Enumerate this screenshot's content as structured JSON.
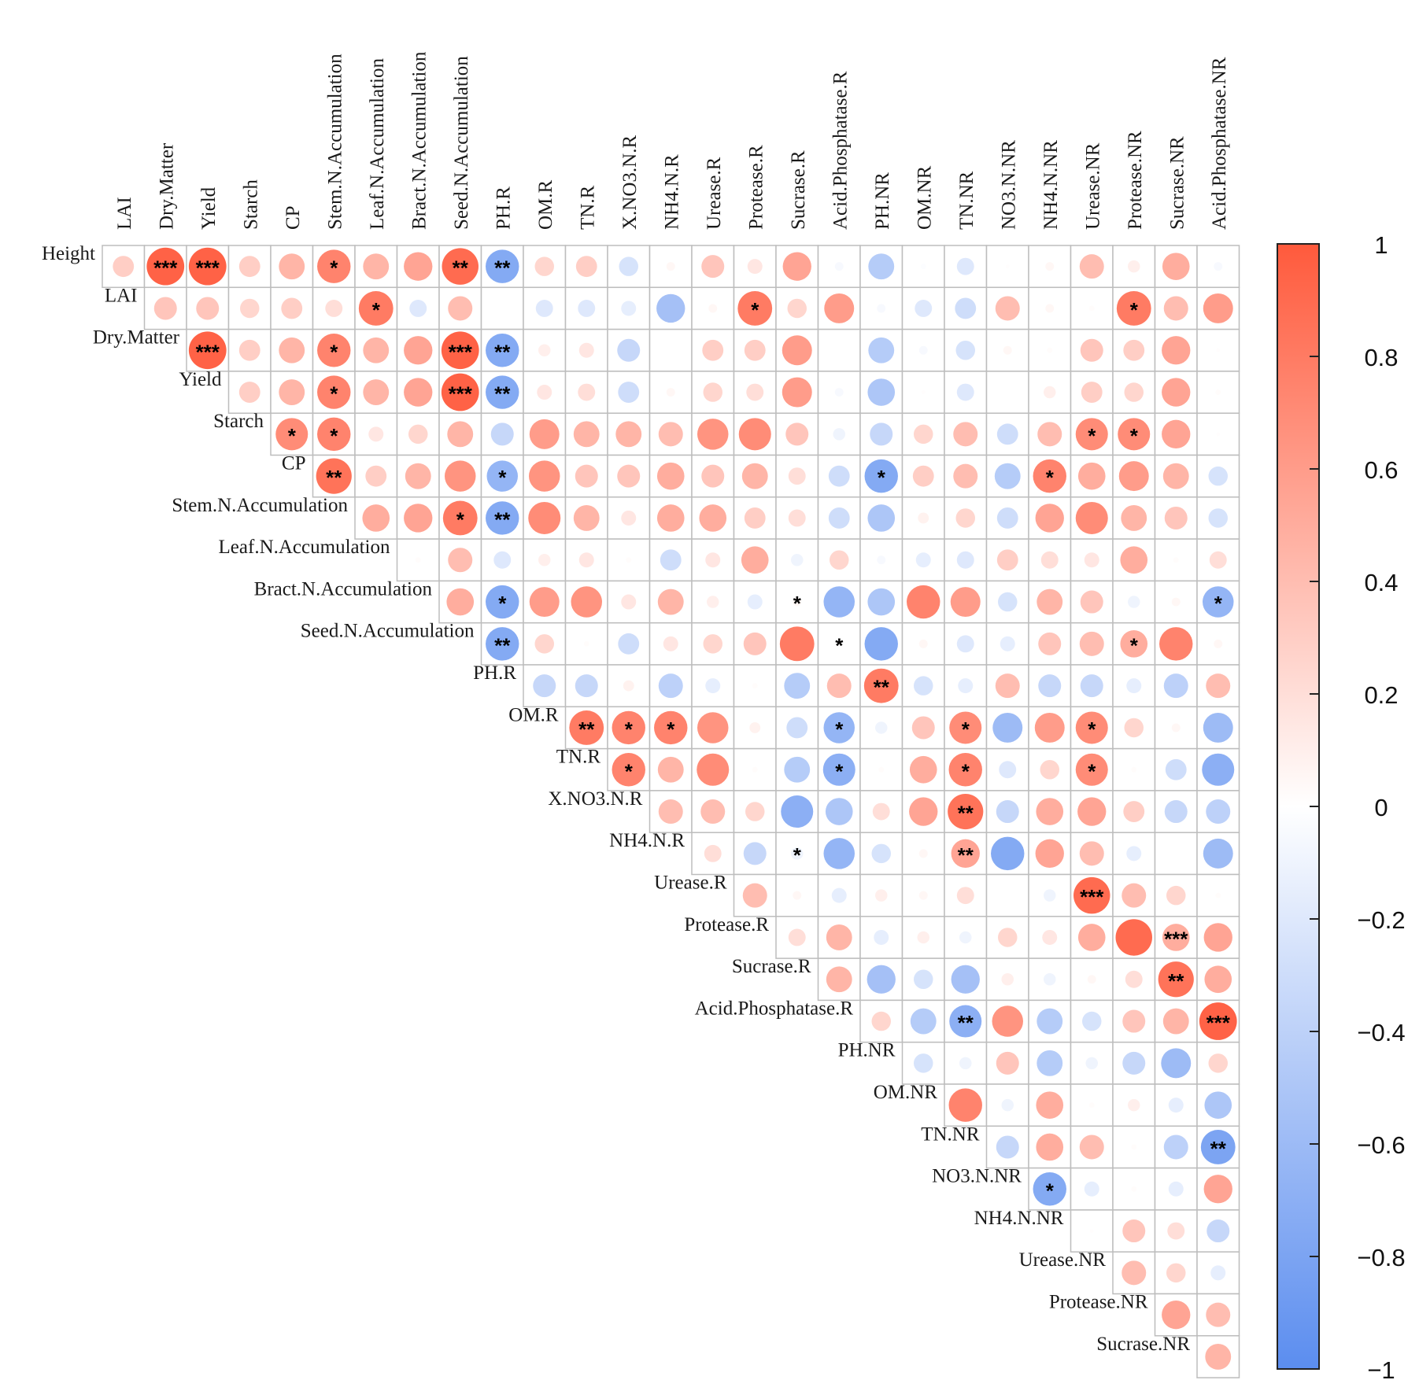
{
  "chart_data": {
    "type": "heatmap",
    "subtype": "upper-triangular correlation matrix (circle markers)",
    "variables": [
      "Height",
      "LAI",
      "Dry.Matter",
      "Yield",
      "Starch",
      "CP",
      "Stem.N.Accumulation",
      "Leaf.N.Accumulation",
      "Bract.N.Accumulation",
      "Seed.N.Accumulation",
      "PH.R",
      "OM.R",
      "TN.R",
      "X.NO3.N.R",
      "NH4.N.R",
      "Urease.R",
      "Protease.R",
      "Sucrase.R",
      "Acid.Phosphatase.R",
      "PH.NR",
      "OM.NR",
      "TN.NR",
      "NO3.N.NR",
      "NH4.N.NR",
      "Urease.NR",
      "Protease.NR",
      "Sucrase.NR",
      "Acid.Phosphatase.NR"
    ],
    "row_labels": [
      "Height",
      "LAI",
      "Dry.Matter",
      "Yield",
      "Starch",
      "CP",
      "Stem.N.Accumulation",
      "Leaf.N.Accumulation",
      "Bract.N.Accumulation",
      "Seed.N.Accumulation",
      "PH.R",
      "OM.R",
      "TN.R",
      "X.NO3.N.R",
      "NH4.N.R",
      "Urease.R",
      "Protease.R",
      "Sucrase.R",
      "Acid.Phosphatase.R",
      "PH.NR",
      "OM.NR",
      "TN.NR",
      "NO3.N.NR",
      "NH4.N.NR",
      "Urease.NR",
      "Protease.NR",
      "Sucrase.NR"
    ],
    "column_labels": [
      "LAI",
      "Dry.Matter",
      "Yield",
      "Starch",
      "CP",
      "Stem.N.Accumulation",
      "Leaf.N.Accumulation",
      "Bract.N.Accumulation",
      "Seed.N.Accumulation",
      "PH.R",
      "OM.R",
      "TN.R",
      "X.NO3.N.R",
      "NH4.N.R",
      "Urease.R",
      "Protease.R",
      "Sucrase.R",
      "Acid.Phosphatase.R",
      "PH.NR",
      "OM.NR",
      "TN.NR",
      "NO3.N.NR",
      "NH4.N.NR",
      "Urease.NR",
      "Protease.NR",
      "Sucrase.NR",
      "Acid.Phosphatase.NR"
    ],
    "color_scale": {
      "min": -1,
      "max": 1,
      "low_color": "#5b8def",
      "mid_color": "#ffffff",
      "high_color": "#ff5a3c"
    },
    "colorbar_ticks": [
      "1",
      "0.8",
      "0.6",
      "0.4",
      "0.2",
      "0",
      "−0.2",
      "−0.4",
      "−0.6",
      "−0.8",
      "−1"
    ],
    "colorbar_tick_values": [
      1,
      0.8,
      0.6,
      0.4,
      0.2,
      0,
      -0.2,
      -0.4,
      -0.6,
      -0.8,
      -1
    ],
    "correlations": [
      [
        0.3,
        0.95,
        0.95,
        0.3,
        0.45,
        0.75,
        0.45,
        0.55,
        0.9,
        -0.75,
        0.25,
        0.3,
        -0.25,
        0.05,
        0.35,
        0.15,
        0.55,
        -0.05,
        -0.45,
        -0.02,
        -0.2,
        0.01,
        0.05,
        0.4,
        0.1,
        0.5,
        -0.05
      ],
      [
        0.35,
        0.35,
        0.25,
        0.3,
        0.2,
        0.8,
        -0.2,
        0.4,
        null,
        -0.2,
        -0.2,
        -0.15,
        -0.55,
        0.05,
        0.8,
        0.25,
        0.6,
        -0.05,
        -0.2,
        -0.3,
        0.4,
        0.05,
        0.02,
        0.8,
        0.4,
        0.6
      ],
      [
        0.95,
        0.3,
        0.45,
        0.75,
        0.45,
        0.55,
        0.95,
        -0.75,
        0.1,
        0.15,
        -0.35,
        null,
        0.3,
        0.3,
        0.6,
        null,
        -0.45,
        -0.05,
        -0.25,
        0.05,
        0.02,
        0.35,
        0.3,
        0.55,
        0.01
      ],
      [
        0.3,
        0.45,
        0.75,
        0.45,
        0.55,
        0.95,
        -0.75,
        0.15,
        0.2,
        -0.3,
        0.05,
        0.25,
        0.2,
        0.6,
        -0.05,
        -0.5,
        0.01,
        -0.2,
        null,
        0.1,
        0.3,
        0.25,
        0.55,
        0.02
      ],
      [
        0.7,
        0.75,
        0.15,
        0.25,
        0.45,
        -0.35,
        0.6,
        0.45,
        0.45,
        0.4,
        0.65,
        0.7,
        0.35,
        -0.1,
        -0.35,
        0.25,
        0.4,
        -0.3,
        0.4,
        0.7,
        0.7,
        0.55,
        0.01
      ],
      [
        0.85,
        0.3,
        0.45,
        0.65,
        -0.65,
        0.65,
        0.35,
        0.35,
        0.5,
        0.35,
        0.45,
        0.2,
        -0.3,
        -0.75,
        0.3,
        0.4,
        -0.45,
        0.75,
        0.5,
        0.6,
        0.45,
        -0.25
      ],
      [
        0.5,
        0.55,
        0.8,
        -0.75,
        0.7,
        0.45,
        0.15,
        0.5,
        0.5,
        0.3,
        0.2,
        -0.3,
        -0.5,
        0.08,
        0.25,
        -0.3,
        0.55,
        0.7,
        0.45,
        0.35,
        -0.25
      ],
      [
        0.02,
        0.4,
        -0.2,
        0.1,
        0.15,
        0.02,
        -0.3,
        0.15,
        0.5,
        -0.1,
        0.25,
        -0.05,
        -0.15,
        -0.2,
        0.3,
        0.2,
        0.15,
        0.5,
        0.02,
        0.2
      ],
      [
        0.5,
        -0.75,
        0.6,
        0.65,
        0.15,
        0.45,
        0.1,
        -0.15,
        0.05,
        -0.65,
        -0.5,
        0.75,
        0.6,
        -0.25,
        0.45,
        0.35,
        -0.1,
        0.05,
        -0.65
      ],
      [
        -0.75,
        0.25,
        0.02,
        -0.3,
        0.15,
        0.25,
        0.35,
        0.8,
        0.02,
        -0.75,
        0.05,
        -0.2,
        -0.15,
        0.35,
        0.4,
        0.5,
        0.75,
        0.05
      ],
      [
        -0.35,
        -0.35,
        0.08,
        -0.4,
        -0.15,
        0.02,
        -0.45,
        0.4,
        0.8,
        -0.25,
        -0.15,
        0.4,
        -0.35,
        -0.35,
        -0.15,
        -0.4,
        0.4
      ],
      [
        0.8,
        0.75,
        0.75,
        0.65,
        0.08,
        -0.3,
        -0.65,
        -0.1,
        0.35,
        0.7,
        -0.6,
        0.6,
        0.7,
        0.25,
        0.05,
        -0.6
      ],
      [
        0.75,
        0.45,
        0.7,
        0.02,
        -0.45,
        -0.7,
        0.02,
        0.5,
        0.75,
        -0.2,
        0.25,
        0.7,
        0.02,
        -0.3,
        -0.7
      ],
      [
        0.4,
        0.4,
        0.25,
        -0.7,
        -0.5,
        0.2,
        0.55,
        0.85,
        -0.35,
        0.5,
        0.55,
        0.3,
        -0.35,
        -0.4
      ],
      [
        0.2,
        -0.35,
        -0.1,
        -0.65,
        -0.25,
        0.05,
        0.55,
        -0.75,
        0.55,
        0.4,
        -0.15,
        null,
        -0.6
      ],
      [
        0.4,
        0.05,
        -0.15,
        0.1,
        0.05,
        0.2,
        null,
        -0.1,
        0.9,
        0.4,
        0.25,
        0.02
      ],
      [
        0.2,
        0.45,
        -0.15,
        0.1,
        -0.1,
        0.25,
        0.15,
        0.5,
        0.9,
        0.5,
        0.55
      ],
      [
        0.45,
        -0.55,
        -0.25,
        -0.55,
        0.1,
        -0.1,
        0.05,
        0.2,
        0.85,
        0.5
      ],
      [
        0.25,
        -0.45,
        -0.7,
        0.65,
        -0.45,
        -0.25,
        0.35,
        0.45,
        0.95
      ],
      [
        -0.25,
        -0.1,
        0.35,
        -0.45,
        -0.1,
        -0.35,
        -0.6,
        0.25
      ],
      [
        0.75,
        -0.1,
        0.5,
        0.02,
        0.1,
        -0.15,
        -0.5
      ],
      [
        -0.35,
        0.5,
        0.4,
        0.02,
        -0.4,
        -0.8
      ],
      [
        -0.75,
        -0.15,
        0.02,
        -0.15,
        0.55
      ],
      [
        0.01,
        0.35,
        0.2,
        -0.35
      ],
      [
        0.4,
        0.25,
        -0.15
      ],
      [
        0.55,
        0.4
      ],
      [
        0.45
      ]
    ],
    "significance": [
      [
        "",
        "***",
        "***",
        "",
        "",
        "*",
        "",
        "",
        "**",
        "**",
        "",
        "",
        "",
        "",
        "",
        "",
        "",
        "",
        "",
        "",
        "",
        "",
        "",
        "",
        "",
        "",
        ""
      ],
      [
        "",
        "",
        "",
        "",
        "",
        "*",
        "",
        "",
        "",
        "",
        "",
        "",
        "",
        "",
        "*",
        "",
        "",
        "",
        "",
        "",
        "",
        "",
        "",
        "*",
        "",
        ""
      ],
      [
        "***",
        "",
        "",
        "*",
        "",
        "",
        "***",
        "**",
        "",
        "",
        "",
        "",
        "",
        "",
        "",
        "",
        "",
        "",
        "",
        "",
        "",
        "",
        "",
        "",
        ""
      ],
      [
        "",
        "",
        "*",
        "",
        "",
        "***",
        "**",
        "",
        "",
        "",
        "",
        "",
        "",
        "",
        "",
        "",
        "",
        "",
        "",
        "",
        "",
        "",
        "",
        ""
      ],
      [
        "*",
        "*",
        "",
        "",
        "",
        "",
        "",
        "",
        "",
        "",
        "",
        "",
        "",
        "",
        "",
        "",
        "",
        "",
        "",
        "*",
        "*",
        "",
        ""
      ],
      [
        "**",
        "",
        "",
        "",
        "*",
        "",
        "",
        "",
        "",
        "",
        "",
        "",
        "",
        "*",
        "",
        "",
        "",
        "*",
        "",
        "",
        ""
      ],
      [
        "",
        "",
        "*",
        "**",
        "",
        "",
        "",
        "",
        "",
        "",
        "",
        "",
        "",
        "",
        "",
        "",
        "",
        "",
        "",
        "",
        ""
      ],
      [
        "",
        "",
        "",
        "",
        "",
        "",
        "",
        "",
        "",
        "",
        "",
        "",
        "",
        "",
        "",
        "",
        "",
        "",
        "",
        ""
      ],
      [
        "",
        "*",
        "",
        "",
        "",
        "",
        "",
        "",
        "*",
        "",
        "",
        "",
        "",
        "",
        "",
        "",
        "",
        "",
        "*"
      ],
      [
        "**",
        "",
        "",
        "",
        "",
        "",
        "",
        "",
        "*",
        "",
        "",
        "",
        "",
        "",
        "",
        "*",
        ""
      ],
      [
        "",
        "",
        "",
        "",
        "",
        "",
        "",
        "",
        "**",
        "",
        "",
        "",
        "",
        "",
        "",
        "",
        ""
      ],
      [
        "**",
        "*",
        "*",
        "",
        "",
        "",
        "*",
        "",
        "",
        "*",
        "",
        "",
        "*",
        "",
        "",
        ""
      ],
      [
        "*",
        "",
        "",
        "",
        "",
        "*",
        "",
        "",
        "*",
        "",
        "",
        "*",
        "",
        "",
        ""
      ],
      [
        "",
        "",
        "",
        "",
        "",
        "",
        "",
        "**",
        "",
        "",
        "",
        "",
        "",
        ""
      ],
      [
        "",
        "",
        "*",
        "",
        "",
        "",
        "**",
        "",
        "",
        "",
        "",
        ""
      ],
      [
        "",
        "",
        "",
        "",
        "",
        "",
        "",
        "",
        "***",
        "",
        "",
        ""
      ],
      [
        "",
        "",
        "",
        "",
        "",
        "",
        "",
        "",
        "",
        "***",
        "",
        ""
      ],
      [
        "",
        "",
        "",
        "",
        "",
        "",
        "",
        "",
        "**",
        ""
      ],
      [
        "",
        "",
        "**",
        "",
        "",
        "",
        "",
        "",
        "***"
      ],
      [
        "",
        "",
        "",
        "",
        "",
        "",
        "",
        ""
      ],
      [
        "",
        "",
        "",
        "",
        "",
        "",
        ""
      ],
      [
        "",
        "",
        "",
        "",
        "",
        "**"
      ],
      [
        "*",
        "",
        "",
        ""
      ],
      [
        "",
        "",
        "",
        ""
      ],
      [
        "",
        "",
        ""
      ],
      [
        "",
        ""
      ],
      [
        ""
      ]
    ]
  }
}
